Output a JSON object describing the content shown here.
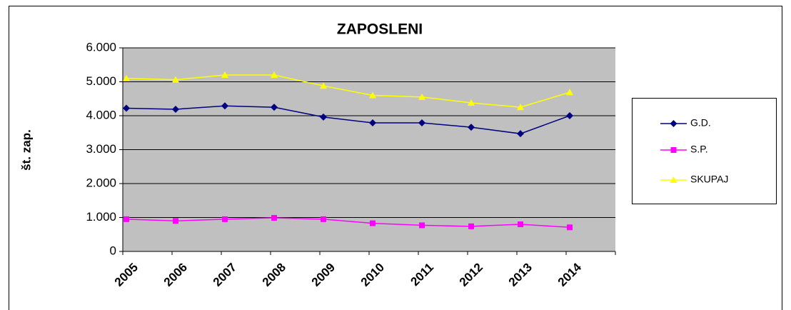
{
  "chart_data": {
    "type": "line",
    "title": "ZAPOSLENI",
    "y_label": "št. zap.",
    "categories": [
      "2005",
      "2006",
      "2007",
      "2008",
      "2009",
      "2010",
      "2011",
      "2012",
      "2013",
      "2014"
    ],
    "series": [
      {
        "name": "G.D.",
        "color": "#000080",
        "marker": "diamond",
        "values": [
          4220,
          4190,
          4290,
          4250,
          3960,
          3790,
          3790,
          3660,
          3470,
          4000
        ]
      },
      {
        "name": "S.P.",
        "color": "#ff00ff",
        "marker": "square",
        "values": [
          950,
          900,
          950,
          990,
          950,
          830,
          770,
          740,
          800,
          710
        ]
      },
      {
        "name": "SKUPAJ",
        "color": "#ffff00",
        "marker": "triangle",
        "values": [
          5100,
          5060,
          5200,
          5200,
          4880,
          4600,
          4550,
          4380,
          4250,
          4690
        ]
      }
    ],
    "ylim": [
      0,
      6000
    ],
    "yticks": [
      0,
      {
        "value": 1000,
        "label": "1.000"
      },
      {
        "value": 2000,
        "label": "2.000"
      },
      {
        "value": 3000,
        "label": "3.000"
      },
      {
        "value": 4000,
        "label": "4.000"
      },
      {
        "value": 5000,
        "label": "5.000"
      },
      {
        "value": 6000,
        "label": "6.000"
      }
    ],
    "grid": true,
    "legend": "right",
    "plot_background": "#c0c0c0"
  }
}
